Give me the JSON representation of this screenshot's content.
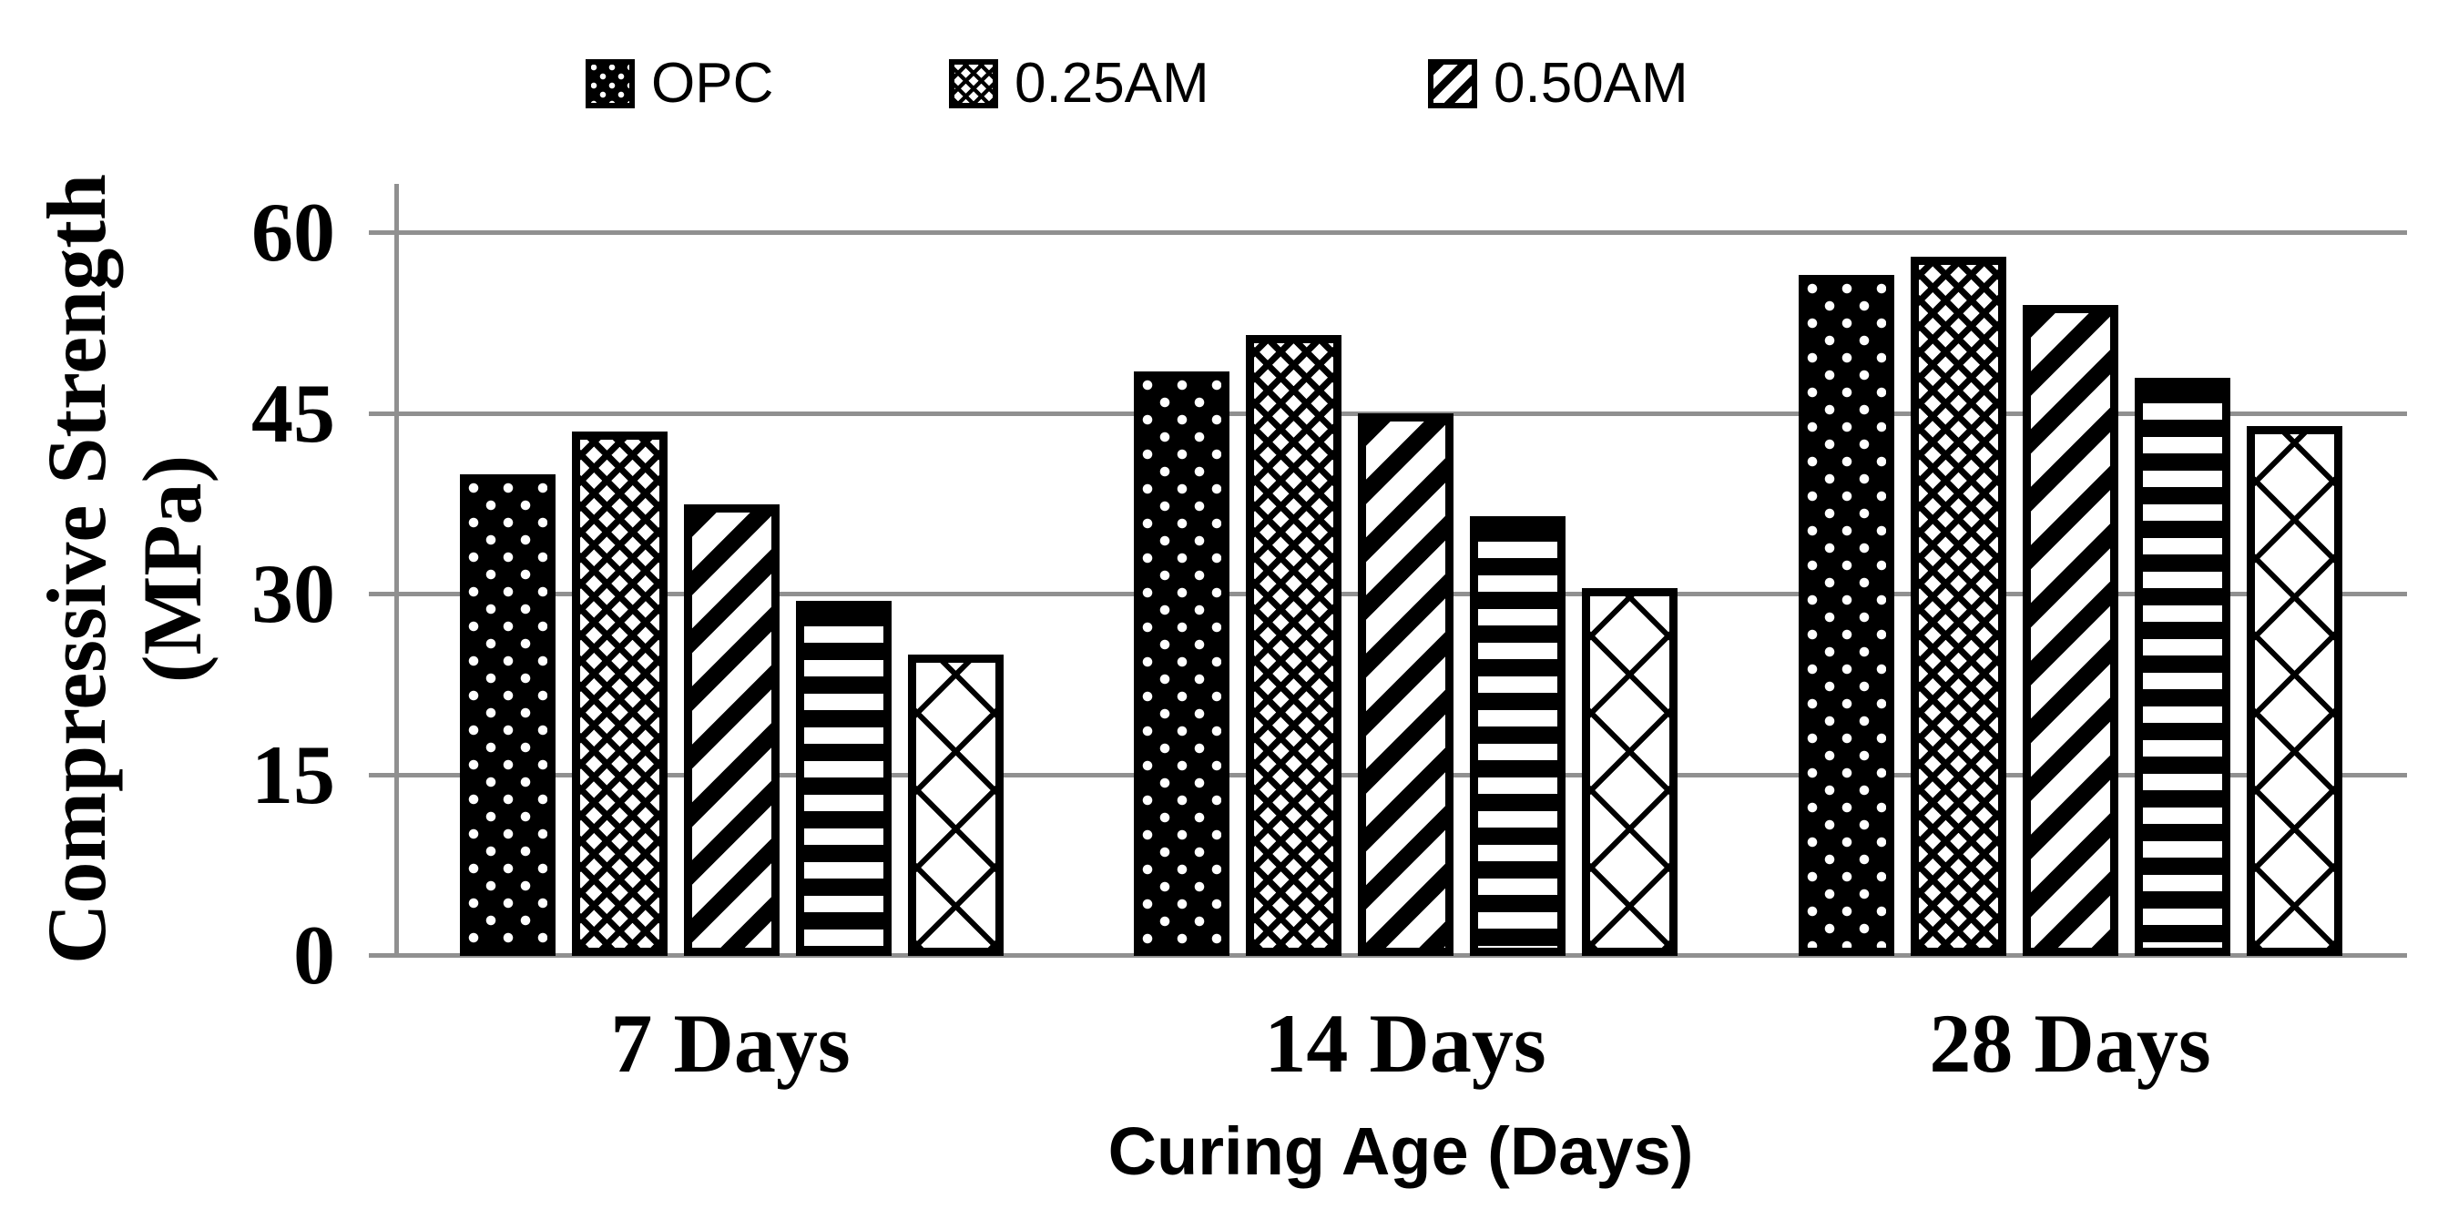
{
  "chart_data": {
    "type": "bar",
    "title": "",
    "categories": [
      "7 Days",
      "14 Days",
      "28 Days"
    ],
    "series": [
      {
        "name": "OPC",
        "pattern": "white-dots-on-black",
        "values": [
          40,
          48.5,
          56.5
        ]
      },
      {
        "name": "0.25AM",
        "pattern": "diagonal-crosshatch",
        "values": [
          43.5,
          51.5,
          58
        ]
      },
      {
        "name": "0.50AM",
        "pattern": "diagonal-stripes",
        "values": [
          37.5,
          45,
          54
        ]
      },
      {
        "name": "",
        "pattern": "horizontal-stripes",
        "values": [
          29.5,
          36.5,
          48
        ]
      },
      {
        "name": "",
        "pattern": "diamond-lattice",
        "values": [
          25,
          30.5,
          44
        ]
      }
    ],
    "legend": [
      "OPC",
      "0.25AM",
      "0.50AM"
    ],
    "legend_position": "top",
    "xlabel": "Curing Age (Days)",
    "ylabel_line1": "Compressive Strength",
    "ylabel_line2": "(MPa)",
    "yticks": [
      0,
      15,
      30,
      45,
      60
    ],
    "ylim": [
      0,
      60
    ],
    "grid": true,
    "colors": {
      "bar_ink": "#000000",
      "grid": "#909090",
      "background": "#ffffff",
      "text": "#000000"
    }
  }
}
